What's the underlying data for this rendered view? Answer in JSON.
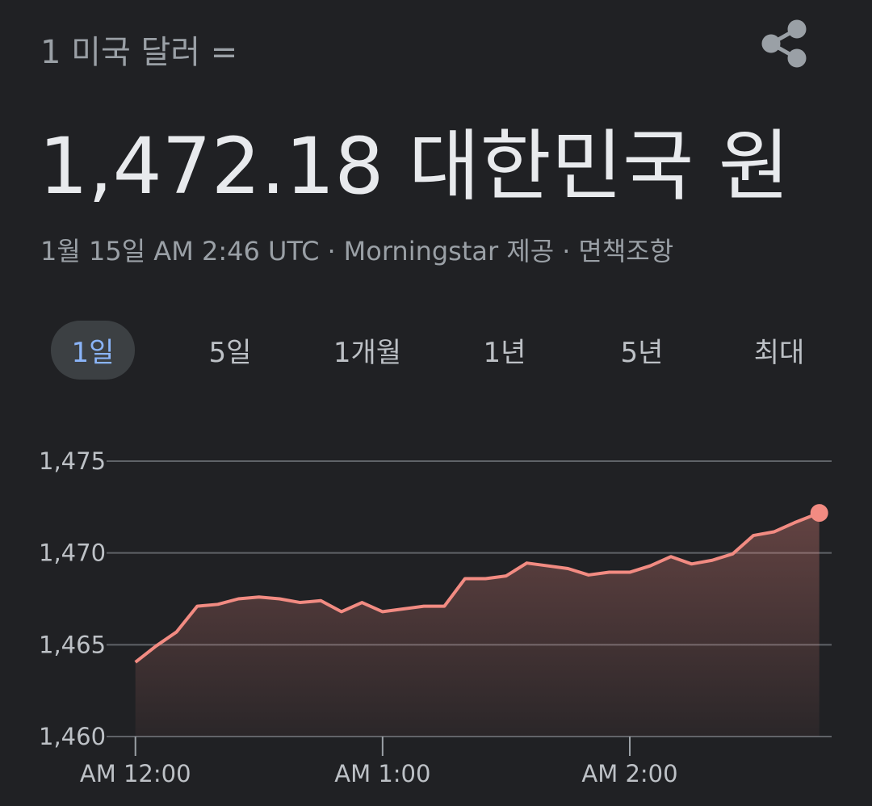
{
  "header": {
    "label": "1 미국 달러 =",
    "amount": "1,472.18 대한민국 원"
  },
  "meta": {
    "date": "1월 15일 AM 2:46 UTC",
    "separator": "·",
    "source": "Morningstar 제공",
    "disclaimer": "면책조항"
  },
  "tabs": {
    "items": [
      "1일",
      "5일",
      "1개월",
      "1년",
      "5년",
      "최대"
    ],
    "selected": 0
  },
  "chart_data": {
    "type": "line",
    "color": "#f28b82",
    "grid": true,
    "x": [
      0,
      5,
      10,
      15,
      20,
      25,
      30,
      35,
      40,
      45,
      50,
      55,
      60,
      65,
      70,
      75,
      80,
      85,
      90,
      95,
      100,
      105,
      110,
      115,
      120,
      125,
      130,
      135,
      140,
      145,
      150,
      155,
      160,
      166
    ],
    "values": [
      1464.05,
      1464.93,
      1465.7,
      1467.1,
      1467.2,
      1467.5,
      1467.6,
      1467.5,
      1467.3,
      1467.4,
      1466.8,
      1467.3,
      1466.8,
      1466.95,
      1467.1,
      1467.1,
      1468.6,
      1468.6,
      1468.75,
      1469.45,
      1469.3,
      1469.15,
      1468.8,
      1468.95,
      1468.95,
      1469.3,
      1469.8,
      1469.4,
      1469.6,
      1469.95,
      1470.95,
      1471.15,
      1471.65,
      1472.18
    ],
    "xlim": [
      -7,
      169
    ],
    "ylim": [
      1460,
      1475
    ],
    "xticks": [
      {
        "value": 0,
        "label": "AM 12:00"
      },
      {
        "value": 60,
        "label": "AM 1:00"
      },
      {
        "value": 120,
        "label": "AM 2:00"
      }
    ],
    "yticks": [
      {
        "value": 1460,
        "label": "1,460"
      },
      {
        "value": 1465,
        "label": "1,465"
      },
      {
        "value": 1470,
        "label": "1,470"
      },
      {
        "value": 1475,
        "label": "1,475"
      }
    ]
  }
}
